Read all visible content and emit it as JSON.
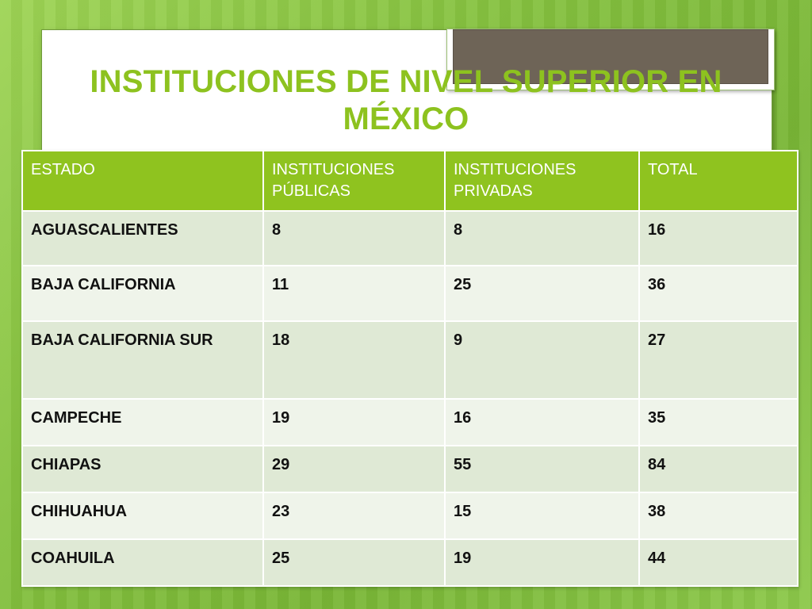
{
  "title": "INSTITUCIONES DE NIVEL SUPERIOR EN MÉXICO",
  "colors": {
    "title": "#8dc21f",
    "header_bg": "#8fc31f",
    "header_text": "#ffffff",
    "row_odd": "#dfe9d5",
    "row_even": "#eff4ea"
  },
  "table": {
    "headers": [
      "ESTADO",
      "INSTITUCIONES PÚBLICAS",
      "INSTITUCIONES PRIVADAS",
      "TOTAL"
    ],
    "rows": [
      [
        "AGUASCALIENTES",
        "8",
        "8",
        "16"
      ],
      [
        "BAJA CALIFORNIA",
        "11",
        "25",
        "36"
      ],
      [
        "BAJA CALIFORNIA SUR",
        "18",
        "9",
        "27"
      ],
      [
        "CAMPECHE",
        "19",
        "16",
        "35"
      ],
      [
        "CHIAPAS",
        "29",
        "55",
        "84"
      ],
      [
        "CHIHUAHUA",
        "23",
        "15",
        "38"
      ],
      [
        "COAHUILA",
        "25",
        "19",
        "44"
      ]
    ]
  }
}
